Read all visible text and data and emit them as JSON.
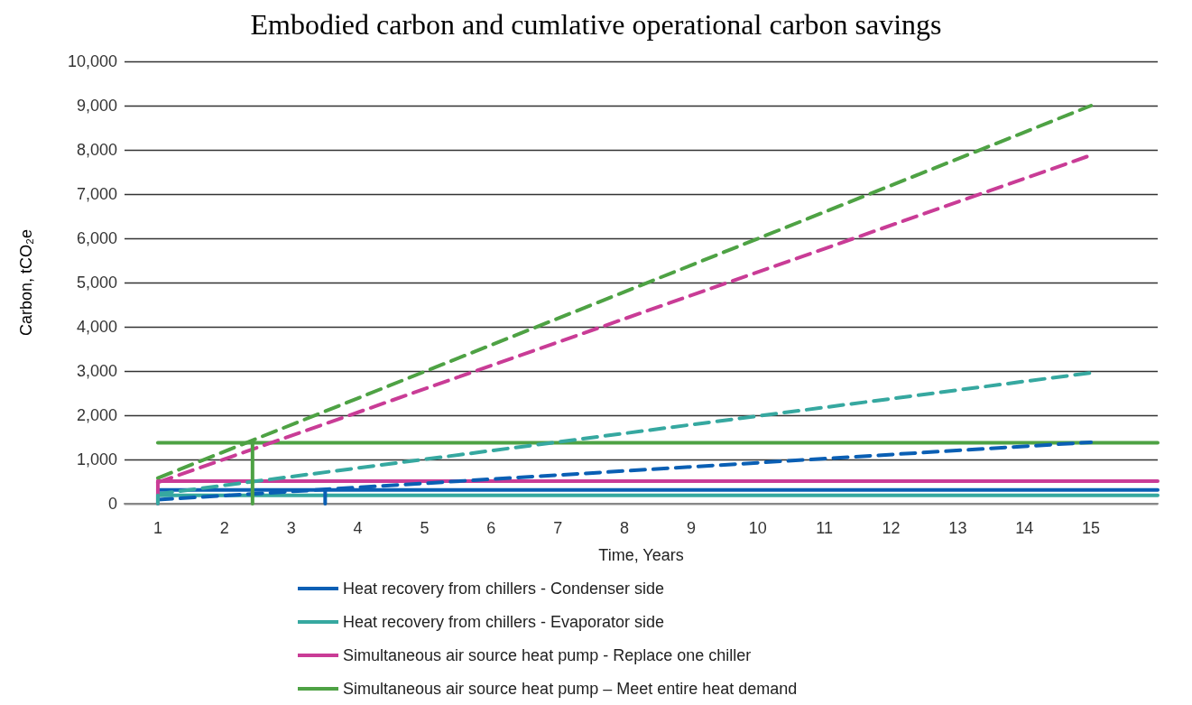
{
  "chart_data": {
    "type": "line",
    "title": "Embodied carbon and cumlative operational carbon savings",
    "xlabel": "Time, Years",
    "ylabel": "Carbon, tCO₂e",
    "xlim": [
      0.5,
      16
    ],
    "xticks": [
      1,
      2,
      3,
      4,
      5,
      6,
      7,
      8,
      9,
      10,
      11,
      12,
      13,
      14,
      15
    ],
    "ylim": [
      0,
      10000
    ],
    "yticks": [
      0,
      {
        "value": 1000,
        "label": "1,000"
      },
      {
        "value": 2000,
        "label": "2,000"
      },
      {
        "value": 3000,
        "label": "3,000"
      },
      {
        "value": 4000,
        "label": "4,000"
      },
      {
        "value": 5000,
        "label": "5,000"
      },
      {
        "value": 6000,
        "label": "6,000"
      },
      {
        "value": 7000,
        "label": "7,000"
      },
      {
        "value": 8000,
        "label": "8,000"
      },
      {
        "value": 9000,
        "label": "9,000"
      },
      {
        "value": 10000,
        "label": "10,000"
      }
    ],
    "grid": "y",
    "legend": "bottom",
    "marker": "none",
    "series": [
      {
        "name": "Heat recovery from chillers - Condenser side",
        "color": "#0a5fb4",
        "line_style": "solid",
        "x": [
          1,
          16
        ],
        "values": [
          310,
          310
        ]
      },
      {
        "name": "Heat recovery from chillers - Evaporator side",
        "color": "#36a8a0",
        "line_style": "solid",
        "x": [
          1,
          16
        ],
        "values": [
          190,
          190
        ]
      },
      {
        "name": "Simultaneous air source heat pump - Replace one chiller",
        "color": "#c93c96",
        "line_style": "solid",
        "x": [
          1,
          16
        ],
        "values": [
          510,
          510
        ]
      },
      {
        "name": "Simultaneous air source heat pump – Meet entire heat demand",
        "color": "#4ea244",
        "line_style": "solid",
        "x": [
          1,
          16
        ],
        "values": [
          1380,
          1380
        ]
      },
      {
        "color": "#0a5fb4",
        "line_style": "dashed",
        "x": [
          1,
          15
        ],
        "values": [
          90,
          1390
        ]
      },
      {
        "color": "#36a8a0",
        "line_style": "dashed",
        "x": [
          1,
          15
        ],
        "values": [
          220,
          2960
        ]
      },
      {
        "color": "#c93c96",
        "line_style": "dashed",
        "x": [
          1,
          15
        ],
        "values": [
          480,
          7880
        ]
      },
      {
        "color": "#4ea244",
        "line_style": "dashed",
        "x": [
          1,
          15
        ],
        "values": [
          580,
          9000
        ]
      },
      {
        "color": "#0a5fb4",
        "line_style": "solid",
        "x": [
          3.51,
          3.51
        ],
        "values": [
          0,
          310
        ]
      },
      {
        "color": "#c93c96",
        "line_style": "solid",
        "x": [
          1,
          1
        ],
        "values": [
          0,
          510
        ]
      },
      {
        "color": "#36a8a0",
        "line_style": "solid",
        "x": [
          1,
          1
        ],
        "values": [
          0,
          190
        ]
      },
      {
        "color": "#4ea244",
        "line_style": "solid",
        "x": [
          2.42,
          2.42
        ],
        "values": [
          0,
          1380
        ]
      }
    ]
  }
}
